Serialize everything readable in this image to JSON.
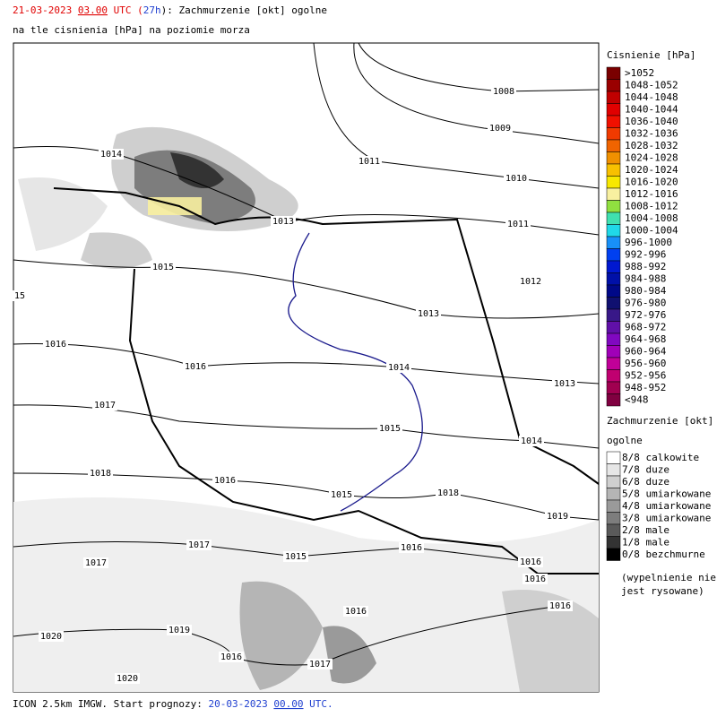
{
  "header": {
    "line1": [
      "21-03-2023",
      " ",
      "03.00",
      " UTC (",
      "27h",
      "): Zachmurzenie [okt] ogolne"
    ],
    "line2": "na tle cisnienia [hPa] na poziomie morza"
  },
  "isobar_labels": [
    "1008",
    "1009",
    "1010",
    "1011",
    "1014",
    "1011",
    "1013",
    "1015",
    "15",
    "1012",
    "1013",
    "1016",
    "1016",
    "1014",
    "1013",
    "1017",
    "1015",
    "1014",
    "1018",
    "1017",
    "1016",
    "1015",
    "1015",
    "1018",
    "1019",
    "1017",
    "1016",
    "1016",
    "1016",
    "1016",
    "1016",
    "1019",
    "1020",
    "1016",
    "1017",
    "1020"
  ],
  "pressure_legend": {
    "title": "Cisnienie [hPa]",
    "items": [
      {
        "label": ">1052",
        "color": "#7a0000"
      },
      {
        "label": "1048-1052",
        "color": "#9a0000"
      },
      {
        "label": "1044-1048",
        "color": "#c00000"
      },
      {
        "label": "1040-1044",
        "color": "#e00000"
      },
      {
        "label": "1036-1040",
        "color": "#f01000"
      },
      {
        "label": "1032-1036",
        "color": "#f03a00"
      },
      {
        "label": "1028-1032",
        "color": "#f06400"
      },
      {
        "label": "1024-1028",
        "color": "#f09000"
      },
      {
        "label": "1020-1024",
        "color": "#f8c000"
      },
      {
        "label": "1016-1020",
        "color": "#f8e800"
      },
      {
        "label": "1012-1016",
        "color": "#f8f0a0"
      },
      {
        "label": "1008-1012",
        "color": "#90e040"
      },
      {
        "label": "1004-1008",
        "color": "#40e0b0"
      },
      {
        "label": "1000-1004",
        "color": "#20d8e8"
      },
      {
        "label": "996-1000",
        "color": "#1890f8"
      },
      {
        "label": "992-996",
        "color": "#0040f0"
      },
      {
        "label": "988-992",
        "color": "#0018d0"
      },
      {
        "label": "984-988",
        "color": "#0010a8"
      },
      {
        "label": "980-984",
        "color": "#000888"
      },
      {
        "label": "976-980",
        "color": "#101070"
      },
      {
        "label": "972-976",
        "color": "#381888"
      },
      {
        "label": "968-972",
        "color": "#6010a8"
      },
      {
        "label": "964-968",
        "color": "#8008c0"
      },
      {
        "label": "960-964",
        "color": "#a000b8"
      },
      {
        "label": "956-960",
        "color": "#c00098"
      },
      {
        "label": "952-956",
        "color": "#c00070"
      },
      {
        "label": "948-952",
        "color": "#a00050"
      },
      {
        "label": "<948",
        "color": "#800040"
      }
    ]
  },
  "cloud_legend": {
    "title": [
      "Zachmurzenie [okt]",
      "ogolne"
    ],
    "items": [
      {
        "label": "8/8 calkowite",
        "color": "#ffffff"
      },
      {
        "label": "7/8 duze",
        "color": "#e6e6e6"
      },
      {
        "label": "6/8 duze",
        "color": "#cfcfcf"
      },
      {
        "label": "5/8 umiarkowane",
        "color": "#b5b5b5"
      },
      {
        "label": "4/8 umiarkowane",
        "color": "#9a9a9a"
      },
      {
        "label": "3/8 umiarkowane",
        "color": "#7d7d7d"
      },
      {
        "label": "2/8 male",
        "color": "#5a5a5a"
      },
      {
        "label": "1/8 male",
        "color": "#333333"
      },
      {
        "label": "0/8 bezchmurne",
        "color": "#000000"
      }
    ],
    "note": [
      "(wypelnienie nie",
      "jest rysowane)"
    ]
  },
  "footer": [
    "ICON 2.5km IMGW. Start prognozy: ",
    "20-03-2023",
    " ",
    "00.00",
    " UTC."
  ]
}
